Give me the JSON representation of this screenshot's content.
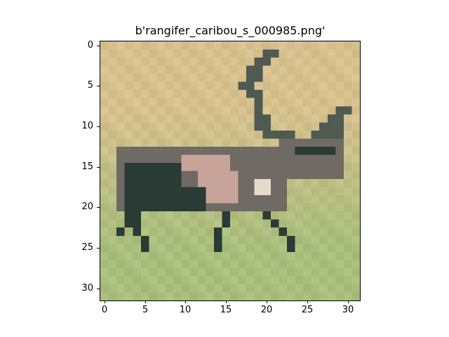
{
  "title": "b'rangifer_caribou_s_000985.png'",
  "image": {
    "subject": "caribou standing on grass",
    "palette": {
      "sky": "#d6c08e",
      "grass": "#a9bd7d",
      "grass_dark": "#93ab6b",
      "body_dark": "#2a3a34",
      "body_mid": "#6f6a63",
      "body_pink": "#c7a39a",
      "antler": "#4e5a52",
      "light_patch": "#e9d9cc"
    }
  },
  "axes": {
    "x_ticks": [
      0,
      5,
      10,
      15,
      20,
      25,
      30
    ],
    "y_ticks": [
      0,
      5,
      10,
      15,
      20,
      25,
      30
    ],
    "x_range": [
      -0.5,
      31.5
    ],
    "y_range": [
      -0.5,
      31.5
    ]
  }
}
